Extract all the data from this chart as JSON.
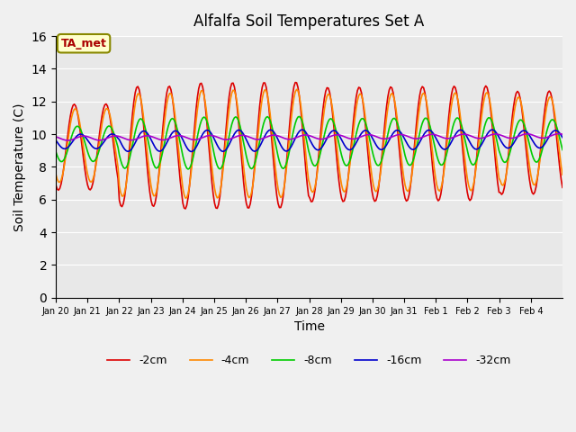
{
  "title": "Alfalfa Soil Temperatures Set A",
  "xlabel": "Time",
  "ylabel": "Soil Temperature (C)",
  "ylim": [
    0,
    16
  ],
  "yticks": [
    0,
    2,
    4,
    6,
    8,
    10,
    12,
    14,
    16
  ],
  "bg_color": "#e8e8e8",
  "colors": {
    "-2cm": "#dd0000",
    "-4cm": "#ff8800",
    "-8cm": "#00cc00",
    "-16cm": "#0000cc",
    "-32cm": "#aa00cc"
  },
  "tick_labels": [
    "Jan 20",
    "Jan 21",
    "Jan 22",
    "Jan 23",
    "Jan 24",
    "Jan 25",
    "Jan 26",
    "Jan 27",
    "Jan 28",
    "Jan 29",
    "Jan 30",
    "Jan 31",
    "Feb 1",
    "Feb 2",
    "Feb 3",
    "Feb 4"
  ],
  "annotation_text": "TA_met",
  "annotation_color": "#aa0000",
  "annotation_bg": "#ffffcc",
  "annotation_border": "#888800"
}
